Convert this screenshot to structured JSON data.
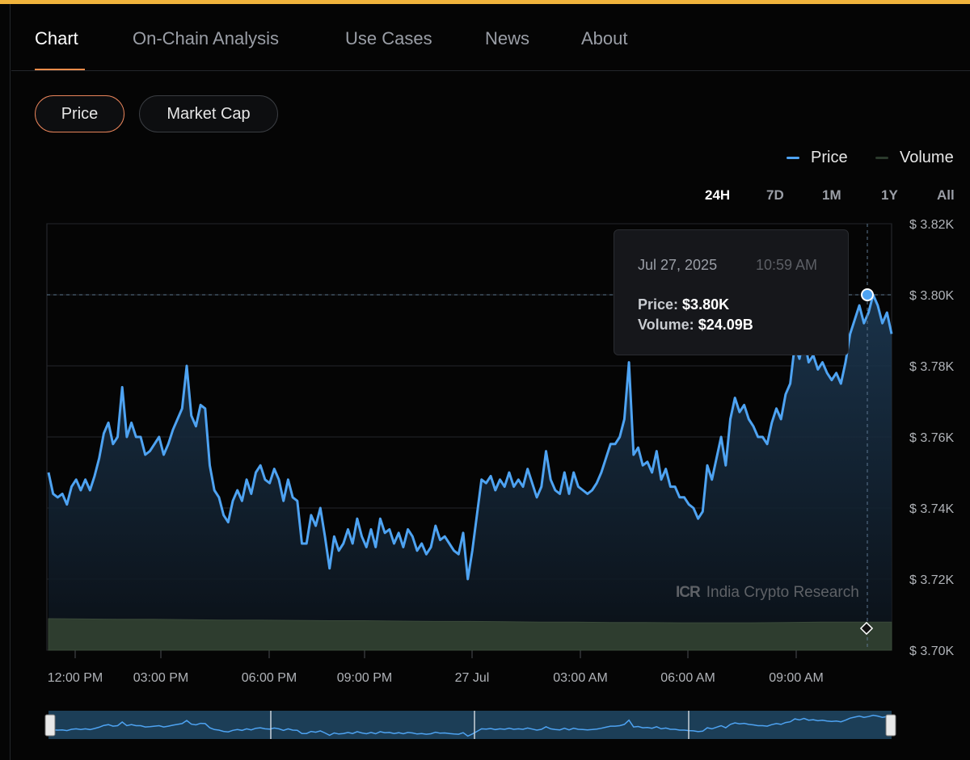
{
  "tabs": [
    {
      "label": "Chart",
      "active": true
    },
    {
      "label": "On-Chain Analysis",
      "active": false
    },
    {
      "label": "Use Cases",
      "active": false
    },
    {
      "label": "News",
      "active": false
    },
    {
      "label": "About",
      "active": false
    }
  ],
  "toggle": {
    "price": "Price",
    "market_cap": "Market Cap",
    "selected": "Price"
  },
  "legend": {
    "price": "Price",
    "volume": "Volume"
  },
  "ranges": {
    "r24h": "24H",
    "r7d": "7D",
    "r1m": "1M",
    "r1y": "1Y",
    "rall": "All",
    "selected": "24H"
  },
  "tooltip": {
    "date": "Jul 27, 2025",
    "time": "10:59 AM",
    "price_label": "Price:",
    "price_value": "$3.80K",
    "volume_label": "Volume:",
    "volume_value": "$24.09B"
  },
  "watermark": {
    "logo": "ICR",
    "text": "India Crypto Research"
  },
  "colors": {
    "price": "#4ea3f2",
    "volume": "#2e3d2f",
    "accent": "#e8845a",
    "background": "#050505"
  },
  "chart_data": {
    "type": "line",
    "yticks": [
      "$ 3.82K",
      "$ 3.80K",
      "$ 3.78K",
      "$ 3.76K",
      "$ 3.74K",
      "$ 3.72K",
      "$ 3.70K"
    ],
    "xticks": [
      "12:00 PM",
      "03:00 PM",
      "06:00 PM",
      "09:00 PM",
      "27 Jul",
      "03:00 AM",
      "06:00 AM",
      "09:00 AM"
    ],
    "ylim": [
      3.7,
      3.82
    ],
    "price_series": {
      "name": "Price",
      "unit": "$K",
      "values": [
        3.75,
        3.744,
        3.743,
        3.744,
        3.741,
        3.746,
        3.748,
        3.745,
        3.748,
        3.745,
        3.749,
        3.754,
        3.761,
        3.764,
        3.758,
        3.76,
        3.774,
        3.76,
        3.764,
        3.76,
        3.76,
        3.755,
        3.756,
        3.758,
        3.76,
        3.755,
        3.758,
        3.762,
        3.765,
        3.768,
        3.78,
        3.766,
        3.763,
        3.769,
        3.768,
        3.752,
        3.745,
        3.743,
        3.738,
        3.736,
        3.742,
        3.745,
        3.742,
        3.748,
        3.744,
        3.75,
        3.752,
        3.748,
        3.747,
        3.751,
        3.748,
        3.742,
        3.748,
        3.743,
        3.742,
        3.73,
        3.73,
        3.738,
        3.735,
        3.74,
        3.732,
        3.723,
        3.732,
        3.728,
        3.73,
        3.734,
        3.73,
        3.737,
        3.732,
        3.729,
        3.734,
        3.729,
        3.737,
        3.733,
        3.734,
        3.73,
        3.733,
        3.729,
        3.734,
        3.732,
        3.728,
        3.73,
        3.727,
        3.729,
        3.735,
        3.731,
        3.732,
        3.73,
        3.728,
        3.727,
        3.733,
        3.72,
        3.728,
        3.738,
        3.748,
        3.747,
        3.749,
        3.745,
        3.748,
        3.746,
        3.75,
        3.746,
        3.748,
        3.746,
        3.751,
        3.747,
        3.743,
        3.746,
        3.756,
        3.748,
        3.745,
        3.744,
        3.75,
        3.744,
        3.75,
        3.746,
        3.745,
        3.744,
        3.745,
        3.747,
        3.75,
        3.754,
        3.758,
        3.758,
        3.76,
        3.765,
        3.781,
        3.755,
        3.757,
        3.752,
        3.753,
        3.75,
        3.756,
        3.748,
        3.751,
        3.746,
        3.746,
        3.743,
        3.743,
        3.741,
        3.74,
        3.737,
        3.739,
        3.752,
        3.748,
        3.754,
        3.76,
        3.752,
        3.765,
        3.771,
        3.767,
        3.769,
        3.765,
        3.763,
        3.76,
        3.76,
        3.758,
        3.764,
        3.768,
        3.765,
        3.772,
        3.775,
        3.786,
        3.782,
        3.788,
        3.781,
        3.783,
        3.779,
        3.781,
        3.778,
        3.776,
        3.778,
        3.775,
        3.781,
        3.789,
        3.793,
        3.797,
        3.792,
        3.795,
        3.8,
        3.797,
        3.792,
        3.795,
        3.789
      ],
      "current": 3.8
    },
    "volume_series": {
      "name": "Volume",
      "values": [
        24.6,
        24.55,
        24.5,
        24.5,
        24.45,
        24.4,
        24.4,
        24.35,
        24.3,
        24.3,
        24.25,
        24.2,
        24.2,
        24.15,
        24.1,
        24.1,
        24.05,
        24.05,
        24.0,
        24.0,
        24.0,
        24.05,
        24.1,
        24.09,
        24.09
      ],
      "unit": "$B"
    }
  }
}
